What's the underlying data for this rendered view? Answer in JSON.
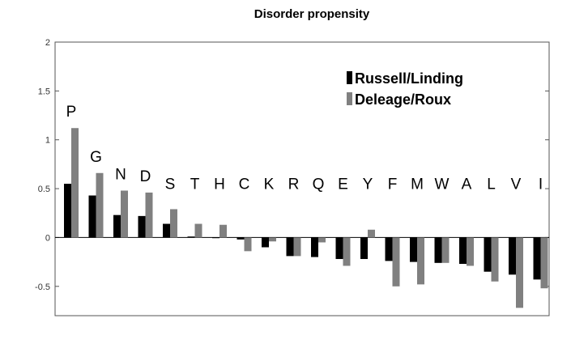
{
  "chart_data": {
    "type": "bar",
    "title": "Disorder propensity",
    "xlabel": "",
    "ylabel": "",
    "categories": [
      "P",
      "G",
      "N",
      "D",
      "S",
      "T",
      "H",
      "C",
      "K",
      "R",
      "Q",
      "E",
      "Y",
      "F",
      "M",
      "W",
      "A",
      "L",
      "V",
      "I"
    ],
    "series": [
      {
        "name": "Russell/Linding",
        "color": "#000000",
        "values": [
          0.55,
          0.43,
          0.23,
          0.22,
          0.14,
          0.01,
          0.0,
          -0.02,
          -0.1,
          -0.19,
          -0.2,
          -0.22,
          -0.22,
          -0.24,
          -0.25,
          -0.26,
          -0.27,
          -0.35,
          -0.38,
          -0.43
        ]
      },
      {
        "name": "Deleage/Roux",
        "color": "#808080",
        "values": [
          1.12,
          0.66,
          0.48,
          0.46,
          0.29,
          0.14,
          0.13,
          -0.14,
          -0.04,
          -0.19,
          -0.05,
          -0.29,
          0.08,
          -0.5,
          -0.48,
          -0.26,
          -0.29,
          -0.45,
          -0.72,
          -0.52
        ]
      }
    ],
    "ylim": [
      -0.8,
      2.0
    ],
    "yticks": [
      -0.5,
      0,
      0.5,
      1,
      1.5,
      2
    ],
    "ytick_labels": [
      "-0.5",
      "0",
      "0.5",
      "1",
      "1.5",
      "2"
    ],
    "legend": "top-right",
    "grid": false
  }
}
